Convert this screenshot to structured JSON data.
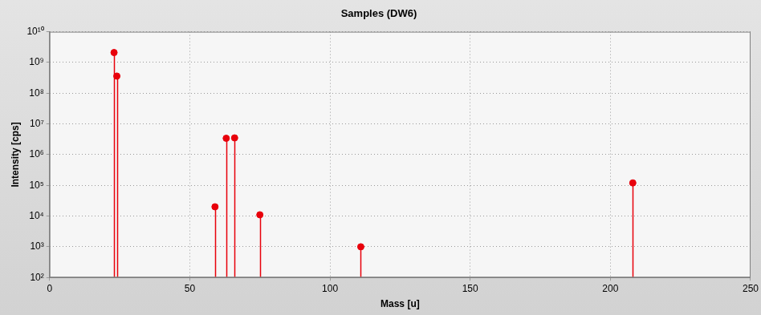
{
  "chart_data": {
    "type": "stem",
    "title": "Samples (DW6)",
    "x_label": "Mass [u]",
    "y_label": "Intensity [cps]",
    "x": [
      23,
      24,
      59,
      63,
      66,
      75,
      111,
      208
    ],
    "values": [
      2100000000,
      360000000,
      20000,
      3400000,
      3500000,
      11000,
      1000,
      120000
    ],
    "color": "#e8000b",
    "marker": "circle",
    "log": "y",
    "grid": true,
    "xlim": [
      0,
      250
    ],
    "xticks": [
      0,
      50,
      100,
      150,
      200,
      250
    ],
    "ylim": [
      100,
      10000000000
    ],
    "yticks": [
      {
        "value": 100,
        "label": "10²"
      },
      {
        "value": 1000,
        "label": "10³"
      },
      {
        "value": 10000,
        "label": "10⁴"
      },
      {
        "value": 100000,
        "label": "10⁵"
      },
      {
        "value": 1000000,
        "label": "10⁶"
      },
      {
        "value": 10000000,
        "label": "10⁷"
      },
      {
        "value": 100000000,
        "label": "10⁸"
      },
      {
        "value": 1000000000,
        "label": "10⁹"
      },
      {
        "value": 10000000000,
        "label": "10¹⁰"
      }
    ]
  }
}
